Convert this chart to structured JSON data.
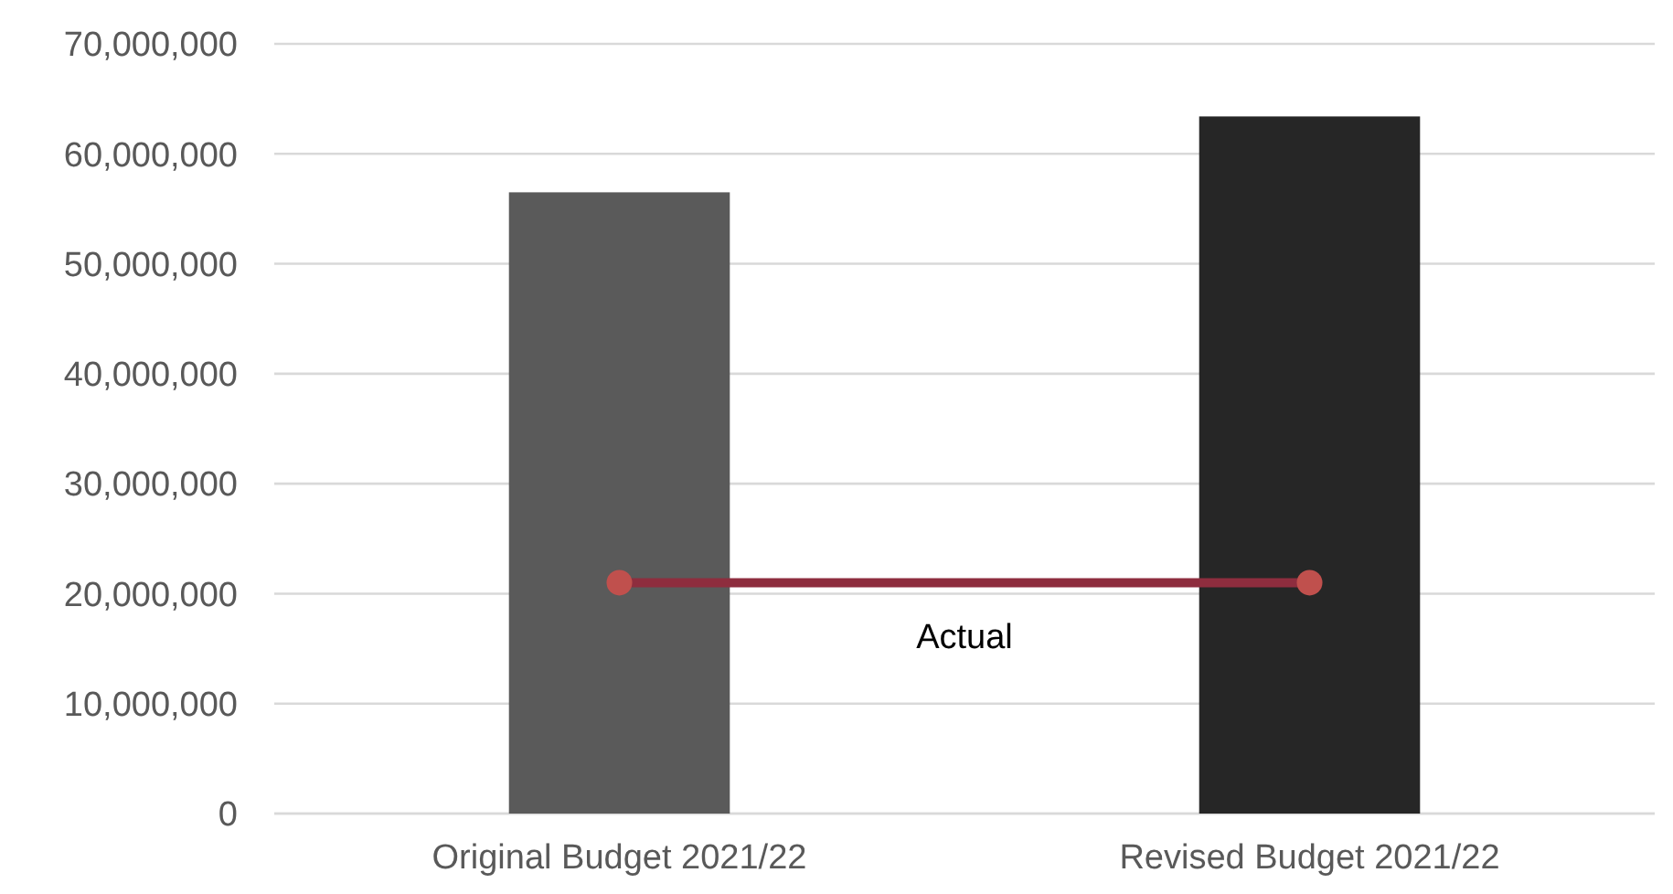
{
  "chart_data": {
    "type": "bar",
    "categories": [
      "Original Budget 2021/22",
      "Revised Budget 2021/22"
    ],
    "series": [
      {
        "colors": [
          "#5a5a5a",
          "#262626"
        ],
        "values": [
          56500000,
          63400000
        ]
      },
      {
        "type": "line",
        "name": "Actual",
        "color": "#8e2d3e",
        "values": [
          21000000,
          21000000
        ]
      }
    ],
    "ylim": [
      0,
      70000000
    ],
    "yticks": [
      {
        "value": 0,
        "label": "0"
      },
      {
        "value": 10000000,
        "label": "10,000,000"
      },
      {
        "value": 20000000,
        "label": "20,000,000"
      },
      {
        "value": 30000000,
        "label": "30,000,000"
      },
      {
        "value": 40000000,
        "label": "40,000,000"
      },
      {
        "value": 50000000,
        "label": "50,000,000"
      },
      {
        "value": 60000000,
        "label": "60,000,000"
      },
      {
        "value": 70000000,
        "label": "70,000,000"
      }
    ],
    "grid": "y",
    "marker": "circle"
  }
}
